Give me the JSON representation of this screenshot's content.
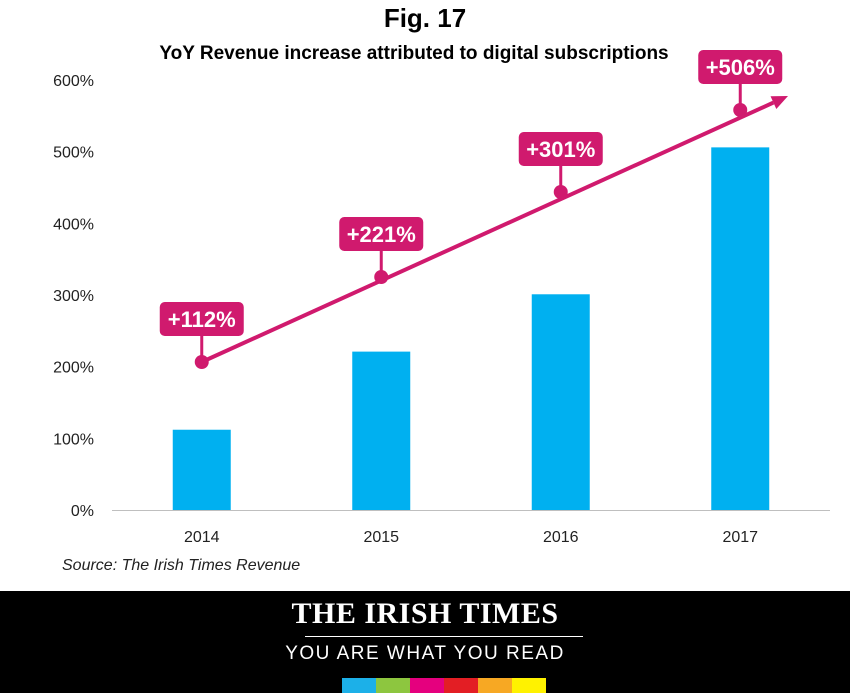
{
  "header": {
    "fig_label": "Fig. 17"
  },
  "chart_data": {
    "type": "bar",
    "title": "YoY Revenue increase attributed to digital subscriptions",
    "categories": [
      "2014",
      "2015",
      "2016",
      "2017"
    ],
    "values": [
      112,
      221,
      301,
      506
    ],
    "value_labels": [
      "+112%",
      "+221%",
      "+301%",
      "+506%"
    ],
    "ylim": [
      0,
      600
    ],
    "yticks": [
      0,
      100,
      200,
      300,
      400,
      500,
      600
    ],
    "ytick_labels": [
      "0%",
      "100%",
      "200%",
      "300%",
      "400%",
      "500%",
      "600%"
    ],
    "grid": false,
    "bar_color": "#00b0f0",
    "trend_color": "#d01a6e"
  },
  "source": "Source: The Irish Times Revenue",
  "footer": {
    "masthead": "THE IRISH TIMES",
    "tagline": "YOU ARE WHAT YOU READ",
    "stripe_colors": [
      "#1cb0e8",
      "#8dc63f",
      "#e5007e",
      "#e31e24",
      "#f7a823",
      "#fff200"
    ]
  }
}
